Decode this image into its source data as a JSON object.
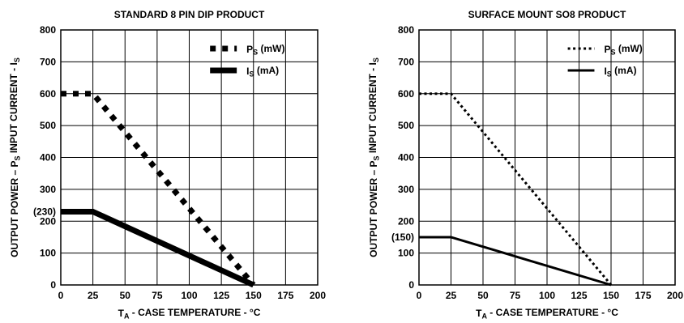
{
  "chart_data": [
    {
      "type": "line",
      "title": "STANDARD 8 PIN DIP PRODUCT",
      "ylabel_parts": [
        "OUTPUT POWER – P",
        "S",
        " INPUT CURRENT - I",
        "S"
      ],
      "xlabel_parts": [
        "T",
        "A",
        " - CASE TEMPERATURE - °C"
      ],
      "xlim": [
        0,
        200
      ],
      "ylim": [
        0,
        800
      ],
      "xticks": [
        0,
        25,
        50,
        75,
        100,
        125,
        150,
        175,
        200
      ],
      "yticks": [
        0,
        100,
        200,
        300,
        400,
        500,
        600,
        700,
        800
      ],
      "grid": true,
      "annotations": [
        {
          "text": "(230)",
          "y": 230
        }
      ],
      "legend": {
        "placement": "top-right"
      },
      "series": [
        {
          "name_parts": [
            "P",
            "S",
            " (mW)"
          ],
          "style": "heavy-dashed",
          "x": [
            0,
            25,
            150
          ],
          "y": [
            600,
            600,
            0
          ]
        },
        {
          "name_parts": [
            "I",
            "S",
            " (mA)"
          ],
          "style": "heavy-solid",
          "x": [
            0,
            25,
            150
          ],
          "y": [
            230,
            230,
            0
          ]
        }
      ]
    },
    {
      "type": "line",
      "title": "SURFACE MOUNT SO8 PRODUCT",
      "ylabel_parts": [
        "OUTPUT POWER – P",
        "S",
        " INPUT CURRENT - I",
        "S"
      ],
      "xlabel_parts": [
        "T",
        "A",
        " - CASE TEMPERATURE - °C"
      ],
      "xlim": [
        0,
        200
      ],
      "ylim": [
        0,
        800
      ],
      "xticks": [
        0,
        25,
        50,
        75,
        100,
        125,
        150,
        175,
        200
      ],
      "yticks": [
        0,
        100,
        200,
        300,
        400,
        500,
        600,
        700,
        800
      ],
      "grid": true,
      "annotations": [
        {
          "text": "(150)",
          "y": 150
        }
      ],
      "legend": {
        "placement": "top-right"
      },
      "series": [
        {
          "name_parts": [
            "P",
            "S",
            " (mW)"
          ],
          "style": "dotted",
          "x": [
            0,
            25,
            150
          ],
          "y": [
            600,
            600,
            0
          ]
        },
        {
          "name_parts": [
            "I",
            "S",
            " (mA)"
          ],
          "style": "solid",
          "x": [
            0,
            25,
            150
          ],
          "y": [
            150,
            150,
            0
          ]
        }
      ]
    }
  ]
}
